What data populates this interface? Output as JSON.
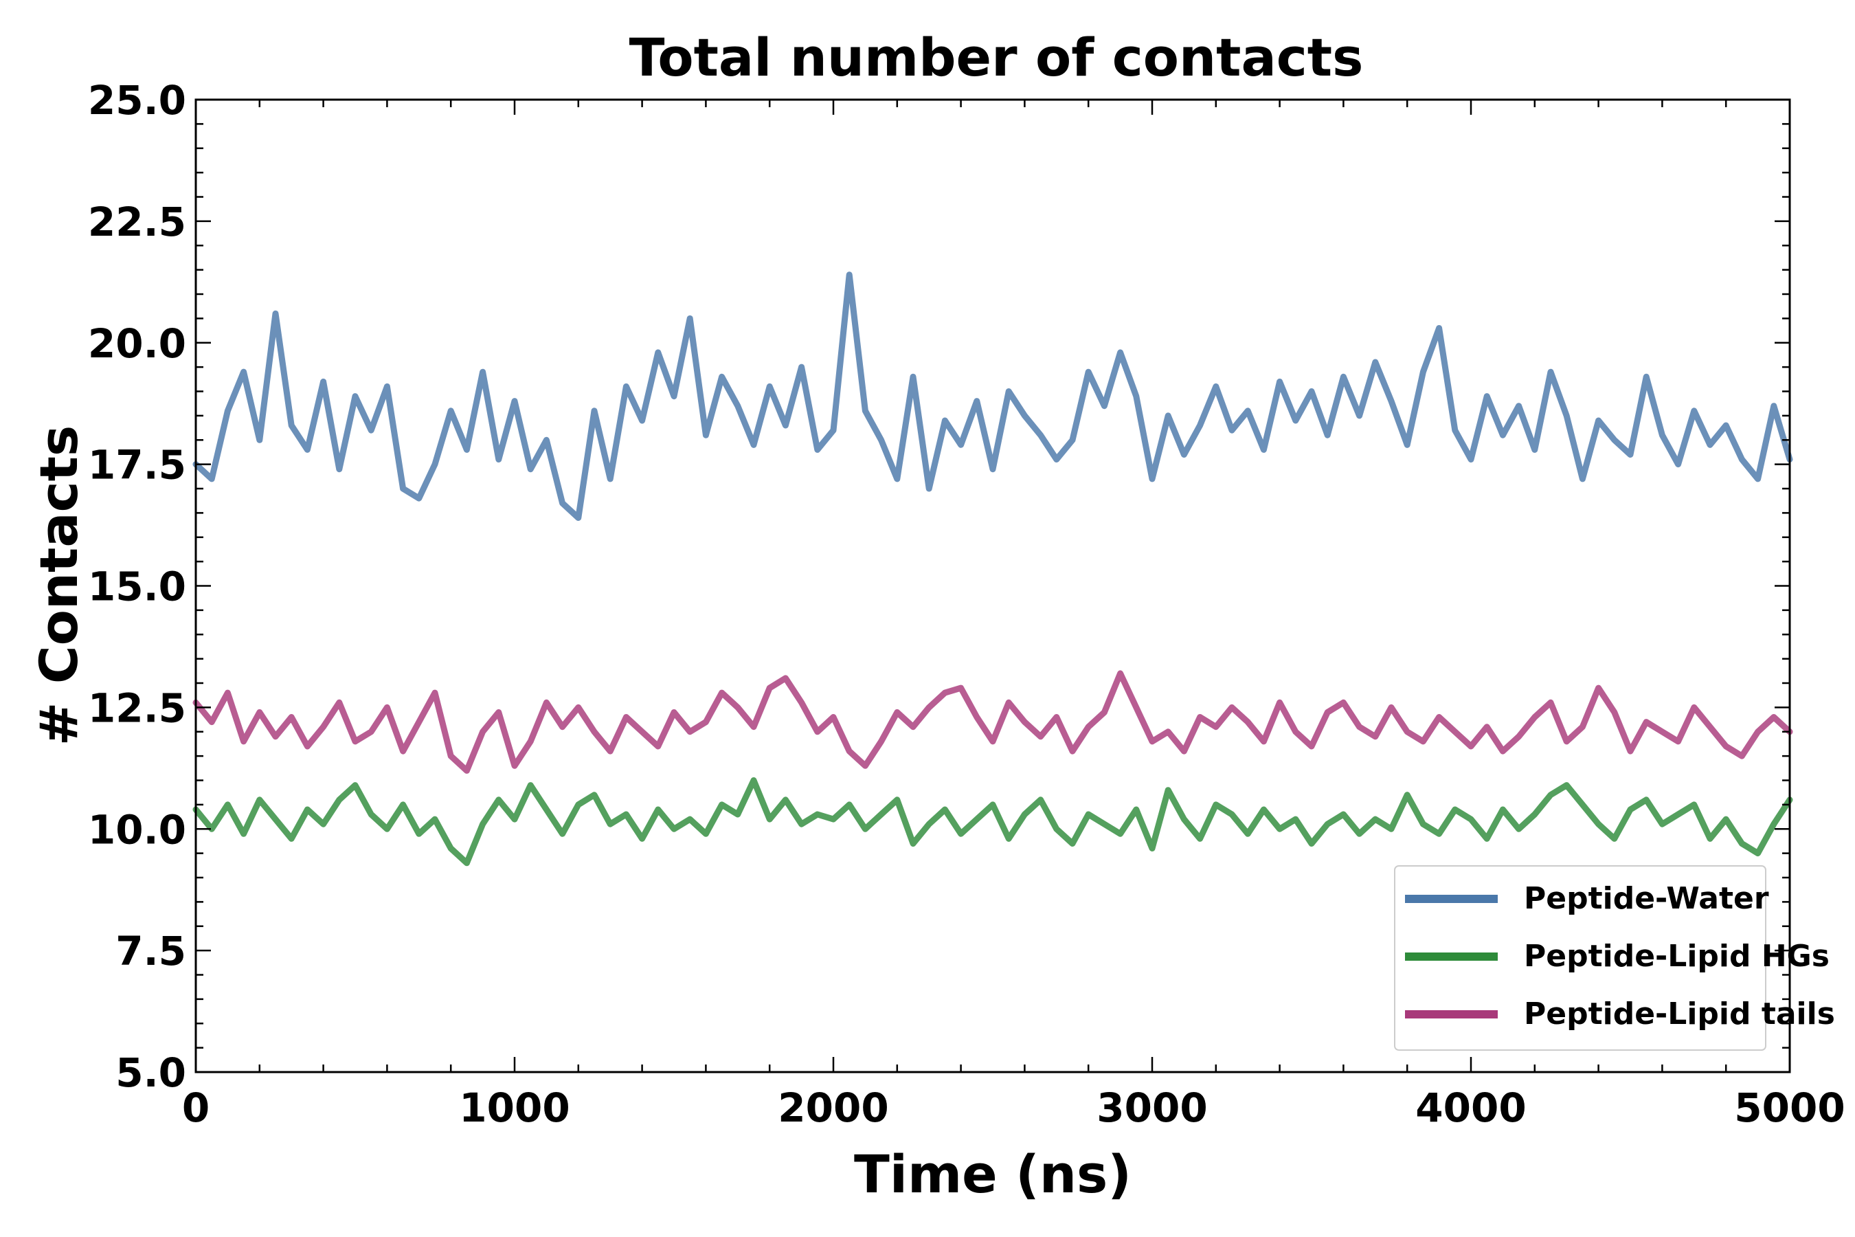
{
  "chart_data": {
    "type": "line",
    "title": "Total number of contacts",
    "xlabel": "Time (ns)",
    "ylabel": "# Contacts",
    "xlim": [
      0,
      5000
    ],
    "ylim": [
      5.0,
      25.0
    ],
    "xticks": [
      0,
      1000,
      2000,
      3000,
      4000,
      5000
    ],
    "xtick_labels": [
      "0",
      "1000",
      "2000",
      "3000",
      "4000",
      "5000"
    ],
    "yticks": [
      5.0,
      7.5,
      10.0,
      12.5,
      15.0,
      17.5,
      20.0,
      22.5,
      25.0
    ],
    "ytick_labels": [
      "5.0",
      "7.5",
      "10.0",
      "12.5",
      "15.0",
      "17.5",
      "20.0",
      "22.5",
      "25.0"
    ],
    "grid": false,
    "legend_position": "bottom-right",
    "series": [
      {
        "name": "Peptide-Water",
        "color": "#4a78aa",
        "x": [
          0,
          50,
          100,
          150,
          200,
          250,
          300,
          350,
          400,
          450,
          500,
          550,
          600,
          650,
          700,
          750,
          800,
          850,
          900,
          950,
          1000,
          1050,
          1100,
          1150,
          1200,
          1250,
          1300,
          1350,
          1400,
          1450,
          1500,
          1550,
          1600,
          1650,
          1700,
          1750,
          1800,
          1850,
          1900,
          1950,
          2000,
          2050,
          2100,
          2150,
          2200,
          2250,
          2300,
          2350,
          2400,
          2450,
          2500,
          2550,
          2600,
          2650,
          2700,
          2750,
          2800,
          2850,
          2900,
          2950,
          3000,
          3050,
          3100,
          3150,
          3200,
          3250,
          3300,
          3350,
          3400,
          3450,
          3500,
          3550,
          3600,
          3650,
          3700,
          3750,
          3800,
          3850,
          3900,
          3950,
          4000,
          4050,
          4100,
          4150,
          4200,
          4250,
          4300,
          4350,
          4400,
          4450,
          4500,
          4550,
          4600,
          4650,
          4700,
          4750,
          4800,
          4850,
          4900,
          4950,
          5000
        ],
        "values": [
          17.5,
          17.2,
          18.6,
          19.4,
          18.0,
          20.6,
          18.3,
          17.8,
          19.2,
          17.4,
          18.9,
          18.2,
          19.1,
          17.0,
          16.8,
          17.5,
          18.6,
          17.8,
          19.4,
          17.6,
          18.8,
          17.4,
          18.0,
          16.7,
          16.4,
          18.6,
          17.2,
          19.1,
          18.4,
          19.8,
          18.9,
          20.5,
          18.1,
          19.3,
          18.7,
          17.9,
          19.1,
          18.3,
          19.5,
          17.8,
          18.2,
          21.4,
          18.6,
          18.0,
          17.2,
          19.3,
          17.0,
          18.4,
          17.9,
          18.8,
          17.4,
          19.0,
          18.5,
          18.1,
          17.6,
          18.0,
          19.4,
          18.7,
          19.8,
          18.9,
          17.2,
          18.5,
          17.7,
          18.3,
          19.1,
          18.2,
          18.6,
          17.8,
          19.2,
          18.4,
          19.0,
          18.1,
          19.3,
          18.5,
          19.6,
          18.8,
          17.9,
          19.4,
          20.3,
          18.2,
          17.6,
          18.9,
          18.1,
          18.7,
          17.8,
          19.4,
          18.5,
          17.2,
          18.4,
          18.0,
          17.7,
          19.3,
          18.1,
          17.5,
          18.6,
          17.9,
          18.3,
          17.6,
          17.2,
          18.7,
          17.6
        ]
      },
      {
        "name": "Peptide-Lipid HGs",
        "color": "#2e8b3a",
        "x": [
          0,
          50,
          100,
          150,
          200,
          250,
          300,
          350,
          400,
          450,
          500,
          550,
          600,
          650,
          700,
          750,
          800,
          850,
          900,
          950,
          1000,
          1050,
          1100,
          1150,
          1200,
          1250,
          1300,
          1350,
          1400,
          1450,
          1500,
          1550,
          1600,
          1650,
          1700,
          1750,
          1800,
          1850,
          1900,
          1950,
          2000,
          2050,
          2100,
          2150,
          2200,
          2250,
          2300,
          2350,
          2400,
          2450,
          2500,
          2550,
          2600,
          2650,
          2700,
          2750,
          2800,
          2850,
          2900,
          2950,
          3000,
          3050,
          3100,
          3150,
          3200,
          3250,
          3300,
          3350,
          3400,
          3450,
          3500,
          3550,
          3600,
          3650,
          3700,
          3750,
          3800,
          3850,
          3900,
          3950,
          4000,
          4050,
          4100,
          4150,
          4200,
          4250,
          4300,
          4350,
          4400,
          4450,
          4500,
          4550,
          4600,
          4650,
          4700,
          4750,
          4800,
          4850,
          4900,
          4950,
          5000
        ],
        "values": [
          10.4,
          10.0,
          10.5,
          9.9,
          10.6,
          10.2,
          9.8,
          10.4,
          10.1,
          10.6,
          10.9,
          10.3,
          10.0,
          10.5,
          9.9,
          10.2,
          9.6,
          9.3,
          10.1,
          10.6,
          10.2,
          10.9,
          10.4,
          9.9,
          10.5,
          10.7,
          10.1,
          10.3,
          9.8,
          10.4,
          10.0,
          10.2,
          9.9,
          10.5,
          10.3,
          11.0,
          10.2,
          10.6,
          10.1,
          10.3,
          10.2,
          10.5,
          10.0,
          10.3,
          10.6,
          9.7,
          10.1,
          10.4,
          9.9,
          10.2,
          10.5,
          9.8,
          10.3,
          10.6,
          10.0,
          9.7,
          10.3,
          10.1,
          9.9,
          10.4,
          9.6,
          10.8,
          10.2,
          9.8,
          10.5,
          10.3,
          9.9,
          10.4,
          10.0,
          10.2,
          9.7,
          10.1,
          10.3,
          9.9,
          10.2,
          10.0,
          10.7,
          10.1,
          9.9,
          10.4,
          10.2,
          9.8,
          10.4,
          10.0,
          10.3,
          10.7,
          10.9,
          10.5,
          10.1,
          9.8,
          10.4,
          10.6,
          10.1,
          10.3,
          10.5,
          9.8,
          10.2,
          9.7,
          9.5,
          10.1,
          10.6
        ]
      },
      {
        "name": "Peptide-Lipid tails",
        "color": "#a8397a",
        "x": [
          0,
          50,
          100,
          150,
          200,
          250,
          300,
          350,
          400,
          450,
          500,
          550,
          600,
          650,
          700,
          750,
          800,
          850,
          900,
          950,
          1000,
          1050,
          1100,
          1150,
          1200,
          1250,
          1300,
          1350,
          1400,
          1450,
          1500,
          1550,
          1600,
          1650,
          1700,
          1750,
          1800,
          1850,
          1900,
          1950,
          2000,
          2050,
          2100,
          2150,
          2200,
          2250,
          2300,
          2350,
          2400,
          2450,
          2500,
          2550,
          2600,
          2650,
          2700,
          2750,
          2800,
          2850,
          2900,
          2950,
          3000,
          3050,
          3100,
          3150,
          3200,
          3250,
          3300,
          3350,
          3400,
          3450,
          3500,
          3550,
          3600,
          3650,
          3700,
          3750,
          3800,
          3850,
          3900,
          3950,
          4000,
          4050,
          4100,
          4150,
          4200,
          4250,
          4300,
          4350,
          4400,
          4450,
          4500,
          4550,
          4600,
          4650,
          4700,
          4750,
          4800,
          4850,
          4900,
          4950,
          5000
        ],
        "values": [
          12.6,
          12.2,
          12.8,
          11.8,
          12.4,
          11.9,
          12.3,
          11.7,
          12.1,
          12.6,
          11.8,
          12.0,
          12.5,
          11.6,
          12.2,
          12.8,
          11.5,
          11.2,
          12.0,
          12.4,
          11.3,
          11.8,
          12.6,
          12.1,
          12.5,
          12.0,
          11.6,
          12.3,
          12.0,
          11.7,
          12.4,
          12.0,
          12.2,
          12.8,
          12.5,
          12.1,
          12.9,
          13.1,
          12.6,
          12.0,
          12.3,
          11.6,
          11.3,
          11.8,
          12.4,
          12.1,
          12.5,
          12.8,
          12.9,
          12.3,
          11.8,
          12.6,
          12.2,
          11.9,
          12.3,
          11.6,
          12.1,
          12.4,
          13.2,
          12.5,
          11.8,
          12.0,
          11.6,
          12.3,
          12.1,
          12.5,
          12.2,
          11.8,
          12.6,
          12.0,
          11.7,
          12.4,
          12.6,
          12.1,
          11.9,
          12.5,
          12.0,
          11.8,
          12.3,
          12.0,
          11.7,
          12.1,
          11.6,
          11.9,
          12.3,
          12.6,
          11.8,
          12.1,
          12.9,
          12.4,
          11.6,
          12.2,
          12.0,
          11.8,
          12.5,
          12.1,
          11.7,
          11.5,
          12.0,
          12.3,
          12.0
        ]
      }
    ]
  }
}
